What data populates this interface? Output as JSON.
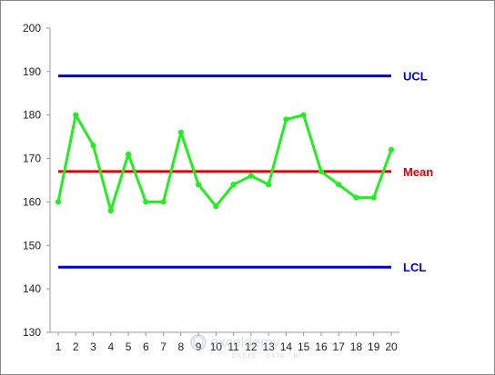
{
  "chart_data": {
    "type": "line",
    "title": "",
    "xlabel": "",
    "ylabel": "",
    "x": [
      1,
      2,
      3,
      4,
      5,
      6,
      7,
      8,
      9,
      10,
      11,
      12,
      13,
      14,
      15,
      16,
      17,
      18,
      19,
      20
    ],
    "series": [
      {
        "values": [
          160,
          180,
          173,
          158,
          171,
          160,
          160,
          176,
          164,
          159,
          164,
          166,
          164,
          179,
          180,
          167,
          164,
          161,
          161,
          172
        ]
      }
    ],
    "reference_lines": [
      {
        "label": "UCL",
        "value": 189,
        "color": "#0000c8"
      },
      {
        "label": "Mean",
        "value": 167,
        "color": "#e00000"
      },
      {
        "label": "LCL",
        "value": 145,
        "color": "#0000c8"
      }
    ],
    "ylim": [
      130,
      200
    ],
    "yticks": [
      130,
      140,
      150,
      160,
      170,
      180,
      190,
      200
    ],
    "xlim": [
      1,
      20
    ],
    "grid": false,
    "legend": "none",
    "colors": {
      "series": "#22ee22",
      "axis": "#999999"
    }
  },
  "watermark": {
    "name": "exceldemy",
    "tagline": "EXCEL · DATA · BI"
  }
}
